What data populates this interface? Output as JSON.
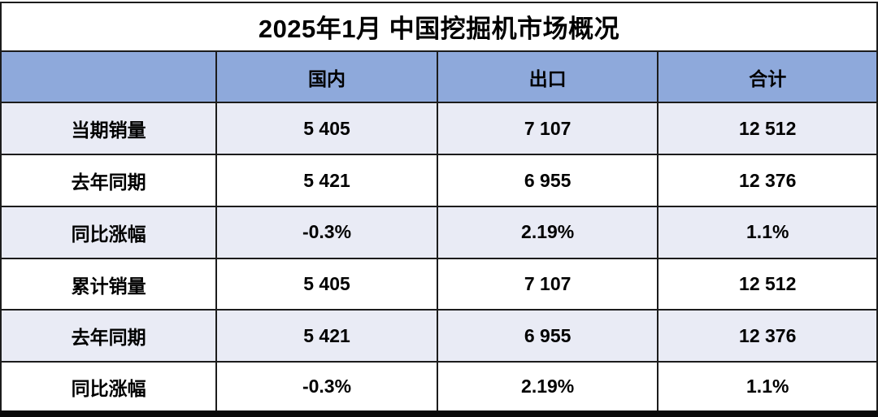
{
  "title": "2025年1月 中国挖掘机市场概况",
  "colors": {
    "header_bg": "#8EA9DB",
    "alt_row_bg": "#E9EBF5",
    "row_bg": "#FFFFFF",
    "border": "#1C1C1C",
    "text": "#000000"
  },
  "chart_data": {
    "type": "table",
    "title": "2025年1月 中国挖掘机市场概况",
    "columns": [
      "",
      "国内",
      "出口",
      "合计"
    ],
    "rows": [
      {
        "label": "当期销量",
        "values": [
          "5 405",
          "7 107",
          "12 512"
        ]
      },
      {
        "label": "去年同期",
        "values": [
          "5 421",
          "6 955",
          "12 376"
        ]
      },
      {
        "label": "同比涨幅",
        "values": [
          "-0.3%",
          "2.19%",
          "1.1%"
        ]
      },
      {
        "label": "累计销量",
        "values": [
          "5 405",
          "7 107",
          "12 512"
        ]
      },
      {
        "label": "去年同期",
        "values": [
          "5 421",
          "6 955",
          "12 376"
        ]
      },
      {
        "label": "同比涨幅",
        "values": [
          "-0.3%",
          "2.19%",
          "1.1%"
        ]
      }
    ]
  }
}
